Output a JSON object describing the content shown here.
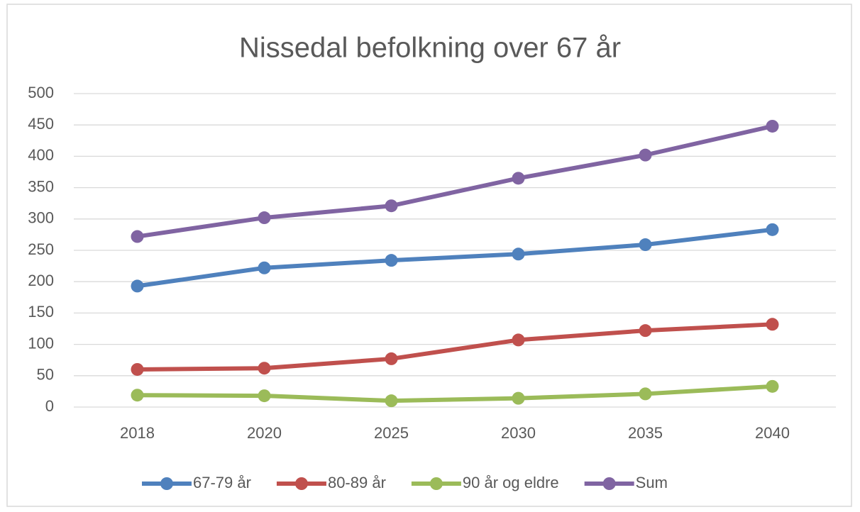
{
  "chart_data": {
    "type": "line",
    "title": "Nissedal befolkning over 67 år",
    "categories": [
      "2018",
      "2020",
      "2025",
      "2030",
      "2035",
      "2040"
    ],
    "series": [
      {
        "name": "67-79 år",
        "color": "#4f81bd",
        "values": [
          193,
          222,
          234,
          244,
          259,
          283
        ]
      },
      {
        "name": "80-89 år",
        "color": "#c0504d",
        "values": [
          60,
          62,
          77,
          107,
          122,
          132
        ]
      },
      {
        "name": "90 år og eldre",
        "color": "#9bbb59",
        "values": [
          19,
          18,
          10,
          14,
          21,
          33
        ]
      },
      {
        "name": "Sum",
        "color": "#8064a2",
        "values": [
          272,
          302,
          321,
          365,
          402,
          448
        ]
      }
    ],
    "ylim": [
      0,
      500
    ],
    "yticks": [
      0,
      50,
      100,
      150,
      200,
      250,
      300,
      350,
      400,
      450,
      500
    ],
    "grid": true,
    "legend": "bottom"
  }
}
